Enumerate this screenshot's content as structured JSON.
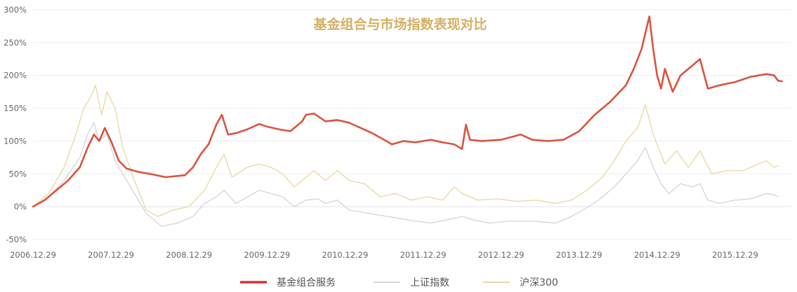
{
  "chart_data": {
    "type": "line",
    "title": "基金组合与市场指数表现对比",
    "xlabel": "",
    "ylabel": "",
    "ylim": [
      -50,
      300
    ],
    "yticks": [
      "-50%",
      "0%",
      "50%",
      "100%",
      "150%",
      "200%",
      "250%",
      "300%"
    ],
    "ytick_values": [
      -50,
      0,
      50,
      100,
      150,
      200,
      250,
      300
    ],
    "xticks": [
      "2006.12.29",
      "2007.12.29",
      "2008.12.29",
      "2009.12.29",
      "2010.12.29",
      "2011.12.29",
      "2012.12.29",
      "2013.12.29",
      "2014.12.29",
      "2015.12.29"
    ],
    "grid": "horizontal",
    "legend_position": "bottom-center",
    "x_unit": "years since 2006.12.29",
    "series": [
      {
        "name": "基金组合服务",
        "color": "#d9543e",
        "points": [
          [
            0,
            0
          ],
          [
            0.15,
            10
          ],
          [
            0.3,
            25
          ],
          [
            0.45,
            40
          ],
          [
            0.6,
            60
          ],
          [
            0.7,
            90
          ],
          [
            0.78,
            110
          ],
          [
            0.85,
            100
          ],
          [
            0.92,
            120
          ],
          [
            1.0,
            100
          ],
          [
            1.1,
            70
          ],
          [
            1.2,
            58
          ],
          [
            1.35,
            53
          ],
          [
            1.5,
            50
          ],
          [
            1.7,
            45
          ],
          [
            1.95,
            48
          ],
          [
            2.05,
            60
          ],
          [
            2.15,
            80
          ],
          [
            2.25,
            95
          ],
          [
            2.35,
            125
          ],
          [
            2.42,
            140
          ],
          [
            2.5,
            110
          ],
          [
            2.6,
            112
          ],
          [
            2.75,
            118
          ],
          [
            2.9,
            126
          ],
          [
            3.0,
            122
          ],
          [
            3.15,
            118
          ],
          [
            3.3,
            115
          ],
          [
            3.45,
            130
          ],
          [
            3.5,
            140
          ],
          [
            3.6,
            142
          ],
          [
            3.75,
            130
          ],
          [
            3.9,
            132
          ],
          [
            4.05,
            128
          ],
          [
            4.2,
            120
          ],
          [
            4.35,
            112
          ],
          [
            4.5,
            102
          ],
          [
            4.6,
            95
          ],
          [
            4.75,
            100
          ],
          [
            4.9,
            98
          ],
          [
            5.1,
            102
          ],
          [
            5.25,
            98
          ],
          [
            5.4,
            95
          ],
          [
            5.5,
            88
          ],
          [
            5.55,
            125
          ],
          [
            5.6,
            102
          ],
          [
            5.75,
            100
          ],
          [
            6.0,
            102
          ],
          [
            6.25,
            110
          ],
          [
            6.4,
            102
          ],
          [
            6.6,
            100
          ],
          [
            6.8,
            102
          ],
          [
            7.0,
            115
          ],
          [
            7.2,
            140
          ],
          [
            7.4,
            160
          ],
          [
            7.6,
            185
          ],
          [
            7.7,
            210
          ],
          [
            7.8,
            240
          ],
          [
            7.9,
            290
          ],
          [
            7.95,
            240
          ],
          [
            8.0,
            200
          ],
          [
            8.05,
            180
          ],
          [
            8.1,
            210
          ],
          [
            8.2,
            175
          ],
          [
            8.3,
            200
          ],
          [
            8.45,
            215
          ],
          [
            8.55,
            225
          ],
          [
            8.65,
            180
          ],
          [
            8.8,
            185
          ],
          [
            9.0,
            190
          ],
          [
            9.2,
            198
          ],
          [
            9.4,
            202
          ],
          [
            9.5,
            200
          ],
          [
            9.55,
            192
          ],
          [
            9.6,
            191
          ]
        ]
      },
      {
        "name": "上证指数",
        "color": "#d6d6de",
        "points": [
          [
            0,
            0
          ],
          [
            0.2,
            15
          ],
          [
            0.4,
            40
          ],
          [
            0.6,
            75
          ],
          [
            0.7,
            110
          ],
          [
            0.78,
            128
          ],
          [
            0.85,
            100
          ],
          [
            0.95,
            110
          ],
          [
            1.05,
            70
          ],
          [
            1.15,
            50
          ],
          [
            1.3,
            20
          ],
          [
            1.45,
            -10
          ],
          [
            1.65,
            -30
          ],
          [
            1.85,
            -25
          ],
          [
            2.05,
            -15
          ],
          [
            2.2,
            5
          ],
          [
            2.35,
            15
          ],
          [
            2.45,
            25
          ],
          [
            2.6,
            5
          ],
          [
            2.75,
            15
          ],
          [
            2.9,
            25
          ],
          [
            3.05,
            20
          ],
          [
            3.2,
            15
          ],
          [
            3.35,
            0
          ],
          [
            3.5,
            10
          ],
          [
            3.65,
            12
          ],
          [
            3.75,
            5
          ],
          [
            3.9,
            10
          ],
          [
            4.05,
            -5
          ],
          [
            4.2,
            -8
          ],
          [
            4.4,
            -12
          ],
          [
            4.55,
            -15
          ],
          [
            4.7,
            -18
          ],
          [
            4.9,
            -22
          ],
          [
            5.1,
            -25
          ],
          [
            5.3,
            -20
          ],
          [
            5.5,
            -15
          ],
          [
            5.65,
            -20
          ],
          [
            5.85,
            -25
          ],
          [
            6.1,
            -22
          ],
          [
            6.4,
            -22
          ],
          [
            6.7,
            -25
          ],
          [
            6.9,
            -15
          ],
          [
            7.05,
            -5
          ],
          [
            7.25,
            10
          ],
          [
            7.45,
            30
          ],
          [
            7.6,
            50
          ],
          [
            7.75,
            70
          ],
          [
            7.85,
            90
          ],
          [
            7.95,
            60
          ],
          [
            8.05,
            35
          ],
          [
            8.15,
            20
          ],
          [
            8.3,
            35
          ],
          [
            8.45,
            30
          ],
          [
            8.55,
            35
          ],
          [
            8.65,
            10
          ],
          [
            8.8,
            5
          ],
          [
            9.0,
            10
          ],
          [
            9.2,
            12
          ],
          [
            9.4,
            20
          ],
          [
            9.5,
            18
          ],
          [
            9.55,
            15
          ]
        ]
      },
      {
        "name": "沪深300",
        "color": "#ead9a7",
        "points": [
          [
            0,
            0
          ],
          [
            0.2,
            20
          ],
          [
            0.4,
            60
          ],
          [
            0.55,
            110
          ],
          [
            0.65,
            150
          ],
          [
            0.75,
            170
          ],
          [
            0.8,
            185
          ],
          [
            0.88,
            140
          ],
          [
            0.95,
            175
          ],
          [
            1.05,
            150
          ],
          [
            1.15,
            90
          ],
          [
            1.3,
            40
          ],
          [
            1.45,
            -5
          ],
          [
            1.6,
            -15
          ],
          [
            1.8,
            -5
          ],
          [
            2.0,
            0
          ],
          [
            2.2,
            25
          ],
          [
            2.35,
            60
          ],
          [
            2.45,
            80
          ],
          [
            2.55,
            45
          ],
          [
            2.75,
            60
          ],
          [
            2.9,
            65
          ],
          [
            3.05,
            60
          ],
          [
            3.2,
            50
          ],
          [
            3.35,
            30
          ],
          [
            3.5,
            45
          ],
          [
            3.6,
            55
          ],
          [
            3.75,
            40
          ],
          [
            3.9,
            55
          ],
          [
            4.05,
            40
          ],
          [
            4.25,
            35
          ],
          [
            4.45,
            15
          ],
          [
            4.65,
            20
          ],
          [
            4.85,
            10
          ],
          [
            5.05,
            15
          ],
          [
            5.25,
            10
          ],
          [
            5.4,
            30
          ],
          [
            5.5,
            20
          ],
          [
            5.7,
            10
          ],
          [
            5.95,
            12
          ],
          [
            6.2,
            8
          ],
          [
            6.45,
            10
          ],
          [
            6.7,
            5
          ],
          [
            6.9,
            10
          ],
          [
            7.1,
            25
          ],
          [
            7.3,
            45
          ],
          [
            7.45,
            70
          ],
          [
            7.6,
            100
          ],
          [
            7.75,
            120
          ],
          [
            7.85,
            155
          ],
          [
            7.95,
            110
          ],
          [
            8.1,
            65
          ],
          [
            8.25,
            85
          ],
          [
            8.4,
            60
          ],
          [
            8.55,
            85
          ],
          [
            8.7,
            50
          ],
          [
            8.9,
            55
          ],
          [
            9.1,
            55
          ],
          [
            9.3,
            65
          ],
          [
            9.4,
            70
          ],
          [
            9.5,
            60
          ],
          [
            9.55,
            62
          ]
        ]
      }
    ]
  }
}
